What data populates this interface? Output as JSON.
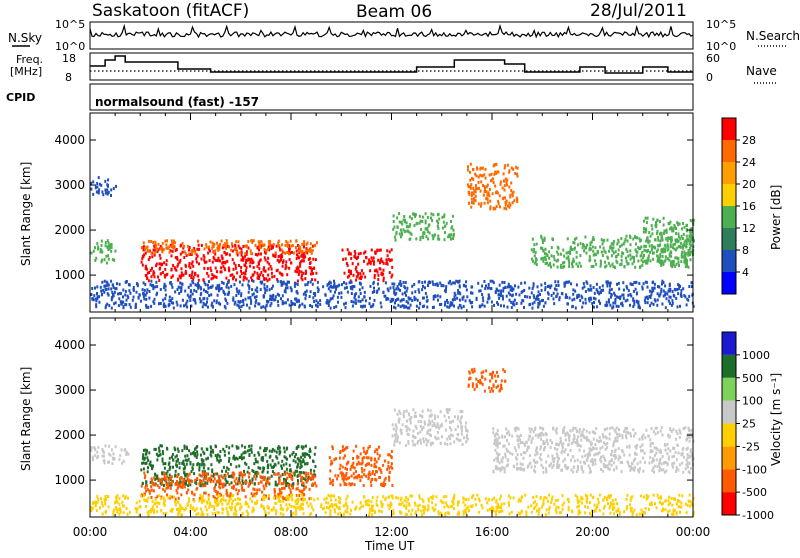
{
  "header": {
    "station": "Saskatoon (fitACF)",
    "beam": "Beam 06",
    "date": "28/Jul/2011"
  },
  "top_panels": {
    "nsky_label": "N.Sky",
    "nsky_ticks": [
      "10^5",
      "10^0"
    ],
    "nsearch_label": "N.Search",
    "nsearch_ticks": [
      "10^5",
      "10^0"
    ],
    "freq_label_line1": "Freq.",
    "freq_label_line2": "[MHz]",
    "freq_ticks": [
      "18",
      "8"
    ],
    "nave_label": "Nave",
    "nave_ticks": [
      "60",
      "0"
    ],
    "cpid_label": "CPID",
    "cpid_text": "normalsound (fast) -157"
  },
  "colors": {
    "power_scale": [
      "#0000ff",
      "#1f4fbf",
      "#2e7d5b",
      "#4caf50",
      "#ffd000",
      "#ffa000",
      "#ff6a00",
      "#ff0000"
    ],
    "velocity_scale": [
      "#1a1ad0",
      "#1e6e2a",
      "#7dd35a",
      "#c8c8c8",
      "#ffd000",
      "#ff9a00",
      "#ff5a00",
      "#ff0000"
    ]
  },
  "chart_data": [
    {
      "type": "heatmap",
      "panel": "power",
      "ylabel": "Slant Range [km]",
      "ylim": [
        180,
        4600
      ],
      "yticks": [
        "1000",
        "2000",
        "3000",
        "4000"
      ],
      "xticks": [
        "00:00",
        "04:00",
        "08:00",
        "12:00",
        "16:00",
        "20:00",
        "00:00"
      ],
      "colorbar_label": "Power [dB]",
      "colorbar_ticks": [
        "28",
        "24",
        "20",
        "16",
        "12",
        "8",
        "4"
      ],
      "regions": [
        {
          "t": [
            0.0,
            1.0
          ],
          "r": [
            1300,
            1800
          ],
          "level": "green"
        },
        {
          "t": [
            0.0,
            1.0
          ],
          "r": [
            2800,
            3200
          ],
          "level": "blue"
        },
        {
          "t": [
            2.0,
            9.0
          ],
          "r": [
            900,
            1700
          ],
          "level": "red"
        },
        {
          "t": [
            2.0,
            9.0
          ],
          "r": [
            1500,
            1800
          ],
          "level": "orange"
        },
        {
          "t": [
            10.0,
            12.0
          ],
          "r": [
            900,
            1600
          ],
          "level": "red"
        },
        {
          "t": [
            12.0,
            14.5
          ],
          "r": [
            1800,
            2400
          ],
          "level": "green"
        },
        {
          "t": [
            15.0,
            17.0
          ],
          "r": [
            2500,
            3500
          ],
          "level": "orange"
        },
        {
          "t": [
            17.5,
            24.0
          ],
          "r": [
            1200,
            1900
          ],
          "level": "green"
        },
        {
          "t": [
            0.0,
            24.0
          ],
          "r": [
            300,
            900
          ],
          "level": "blue"
        },
        {
          "t": [
            22.0,
            24.0
          ],
          "r": [
            1300,
            2300
          ],
          "level": "green"
        }
      ]
    },
    {
      "type": "heatmap",
      "panel": "velocity",
      "xlabel": "Time UT",
      "ylabel": "Slant Range [km]",
      "ylim": [
        180,
        4600
      ],
      "yticks": [
        "1000",
        "2000",
        "3000",
        "4000"
      ],
      "xticks": [
        "00:00",
        "04:00",
        "08:00",
        "12:00",
        "16:00",
        "20:00",
        "00:00"
      ],
      "colorbar_label": "Velocity [m s⁻¹]",
      "colorbar_ticks": [
        "1000",
        "500",
        "100",
        "25",
        "-25",
        "-100",
        "-500",
        "-1000"
      ],
      "regions": [
        {
          "t": [
            0.0,
            1.5
          ],
          "r": [
            1400,
            1800
          ],
          "level": "gray"
        },
        {
          "t": [
            2.0,
            9.0
          ],
          "r": [
            900,
            1800
          ],
          "level": "green"
        },
        {
          "t": [
            2.0,
            9.0
          ],
          "r": [
            600,
            1200
          ],
          "level": "orange"
        },
        {
          "t": [
            9.5,
            12.0
          ],
          "r": [
            900,
            1800
          ],
          "level": "orange"
        },
        {
          "t": [
            12.0,
            15.0
          ],
          "r": [
            1800,
            2600
          ],
          "level": "gray"
        },
        {
          "t": [
            15.0,
            16.5
          ],
          "r": [
            3000,
            3500
          ],
          "level": "orange"
        },
        {
          "t": [
            16.0,
            24.0
          ],
          "r": [
            1200,
            2200
          ],
          "level": "gray"
        },
        {
          "t": [
            0.0,
            24.0
          ],
          "r": [
            250,
            700
          ],
          "level": "yellow"
        }
      ]
    }
  ]
}
